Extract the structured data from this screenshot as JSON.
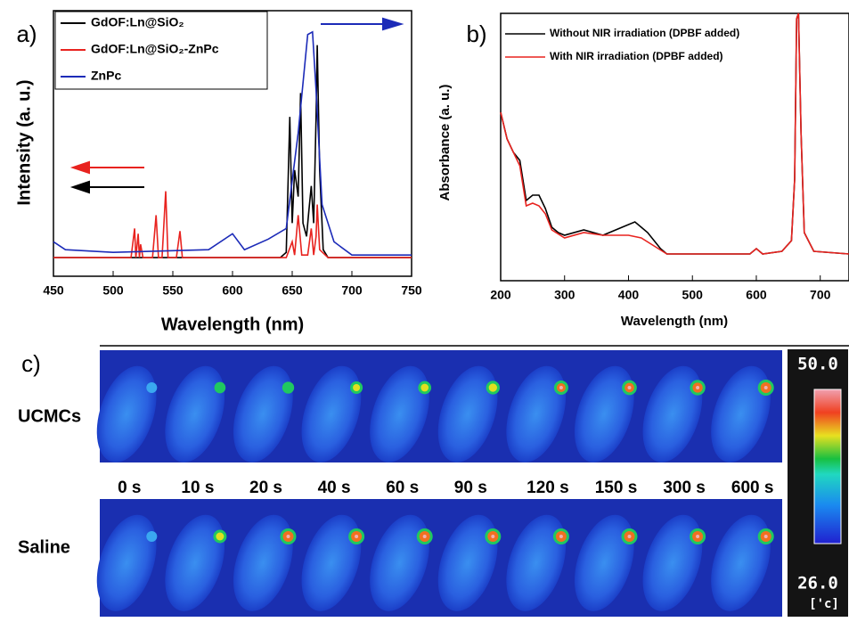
{
  "chart_data": [
    {
      "type": "line",
      "label": "a)",
      "xlabel": "Wavelength (nm)",
      "ylabel": "Intensity (a. u.)",
      "xlim": [
        450,
        750
      ],
      "xticks": [
        450,
        500,
        550,
        600,
        650,
        700,
        750
      ],
      "ylim": [
        0,
        100
      ],
      "series": [
        {
          "name": "GdOF:Ln@SiO₂",
          "color": "#000000",
          "x": [
            450,
            640,
            645,
            648,
            650,
            652,
            655,
            657,
            659,
            662,
            664,
            666,
            668,
            670,
            671,
            673,
            676,
            680,
            750
          ],
          "values": [
            7,
            7,
            9,
            60,
            20,
            40,
            30,
            69,
            20,
            15,
            25,
            34,
            20,
            60,
            87,
            40,
            10,
            7,
            7
          ]
        },
        {
          "name": "GdOF:Ln@SiO₂-ZnPc",
          "color": "#e8231f",
          "x": [
            450,
            515,
            518,
            519,
            521,
            522,
            523,
            525,
            533,
            536,
            538,
            541,
            544,
            546,
            553,
            556,
            558,
            645,
            650,
            652,
            655,
            658,
            663,
            666,
            668,
            670,
            671,
            673,
            680,
            750
          ],
          "values": [
            7,
            7,
            18,
            7,
            16,
            7,
            12,
            7,
            7,
            23,
            7,
            7,
            32,
            7,
            7,
            17,
            7,
            7,
            13,
            8,
            23,
            8,
            8,
            18,
            8,
            15,
            27,
            10,
            7,
            7
          ]
        },
        {
          "name": "ZnPc",
          "color": "#1c2bb8",
          "x": [
            450,
            460,
            500,
            580,
            600,
            610,
            630,
            645,
            655,
            663,
            667,
            670,
            675,
            685,
            700,
            750
          ],
          "values": [
            13,
            10,
            9,
            10,
            16,
            10,
            14,
            18,
            54,
            91,
            92,
            70,
            27,
            13,
            8,
            8
          ]
        }
      ]
    },
    {
      "type": "line",
      "label": "b)",
      "xlabel": "Wavelength (nm)",
      "ylabel": "Absorbance (a. u.)",
      "xlim": [
        200,
        745
      ],
      "xticks": [
        200,
        300,
        400,
        500,
        600,
        700
      ],
      "ylim": [
        0,
        100
      ],
      "series": [
        {
          "name": "Without NIR irradiation (DPBF added)",
          "color": "#000000",
          "x": [
            200,
            210,
            220,
            230,
            240,
            250,
            260,
            270,
            280,
            290,
            300,
            330,
            360,
            390,
            410,
            430,
            450,
            460,
            590,
            600,
            610,
            640,
            655,
            660,
            663,
            666,
            670,
            675,
            690,
            745
          ],
          "values": [
            63,
            53,
            48,
            45,
            30,
            32,
            32,
            27,
            20,
            18,
            17,
            19,
            17,
            20,
            22,
            18,
            12,
            10,
            10,
            12,
            10,
            11,
            15,
            38,
            98,
            100,
            55,
            18,
            11,
            10
          ]
        },
        {
          "name": "With NIR irradiation (DPBF added)",
          "color": "#e8231f",
          "x": [
            200,
            210,
            220,
            230,
            240,
            250,
            260,
            270,
            280,
            300,
            330,
            360,
            400,
            420,
            440,
            460,
            590,
            600,
            610,
            640,
            655,
            660,
            663,
            666,
            670,
            675,
            690,
            745
          ],
          "values": [
            63,
            53,
            48,
            43,
            28,
            29,
            28,
            25,
            19,
            16,
            18,
            17,
            17,
            16,
            13,
            10,
            10,
            12,
            10,
            11,
            15,
            38,
            98,
            100,
            55,
            18,
            11,
            10
          ]
        }
      ]
    }
  ],
  "panel_c": {
    "label": "c)",
    "rows": [
      "UCMCs",
      "Saline"
    ],
    "times": [
      "0 s",
      "10 s",
      "20 s",
      "40 s",
      "60 s",
      "90 s",
      "120 s",
      "150 s",
      "300 s",
      "600 s"
    ],
    "colorbar": {
      "max": {
        "value": 50,
        "label": "50.0"
      },
      "min": {
        "value": 26,
        "label": "26.0"
      },
      "unit": "['c]"
    }
  }
}
